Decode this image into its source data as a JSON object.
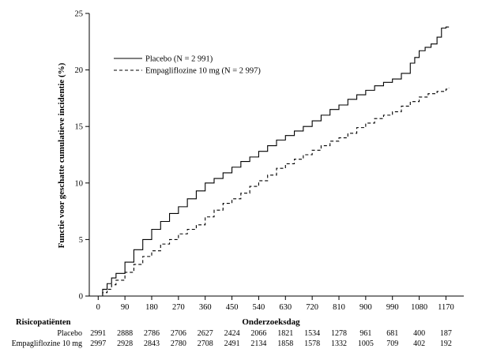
{
  "chart_data": {
    "type": "line",
    "xlabel": "Onderzoeksdag",
    "ylabel": "Functie voor geschatte cumulatieve incidentie (%)",
    "xlim": [
      -30,
      1230
    ],
    "ylim": [
      0,
      25
    ],
    "x_ticks": [
      0,
      90,
      180,
      270,
      360,
      450,
      540,
      630,
      720,
      810,
      900,
      990,
      1080,
      1170
    ],
    "y_ticks": [
      0,
      5,
      10,
      15,
      20,
      25
    ],
    "legend_position": "top-left",
    "series": [
      {
        "name": "Placebo (N = 2 991)",
        "line_style": "solid",
        "x": [
          0,
          15,
          30,
          45,
          60,
          90,
          120,
          150,
          180,
          210,
          240,
          270,
          300,
          330,
          360,
          390,
          420,
          450,
          480,
          510,
          540,
          570,
          600,
          630,
          660,
          690,
          720,
          750,
          780,
          810,
          840,
          870,
          900,
          930,
          960,
          990,
          1020,
          1050,
          1065,
          1080,
          1100,
          1120,
          1140,
          1155,
          1170,
          1180
        ],
        "y": [
          0,
          0.6,
          1.1,
          1.6,
          2.0,
          3.0,
          4.1,
          5.0,
          5.9,
          6.6,
          7.3,
          7.9,
          8.6,
          9.3,
          10.0,
          10.4,
          10.9,
          11.4,
          11.9,
          12.3,
          12.8,
          13.3,
          13.8,
          14.2,
          14.6,
          15.0,
          15.5,
          16.0,
          16.5,
          16.9,
          17.4,
          17.8,
          18.2,
          18.6,
          18.9,
          19.2,
          19.7,
          20.6,
          21.1,
          21.7,
          22.0,
          22.3,
          22.9,
          23.7,
          23.8,
          23.8
        ]
      },
      {
        "name": "Empagliflozine 10 mg (N = 2 997)",
        "line_style": "dashed",
        "x": [
          0,
          15,
          30,
          45,
          60,
          90,
          120,
          150,
          180,
          210,
          240,
          270,
          300,
          330,
          360,
          390,
          420,
          450,
          480,
          510,
          540,
          570,
          600,
          630,
          660,
          690,
          720,
          750,
          780,
          810,
          840,
          870,
          900,
          930,
          960,
          990,
          1020,
          1050,
          1080,
          1110,
          1140,
          1170,
          1180
        ],
        "y": [
          0,
          0.3,
          0.6,
          1.0,
          1.4,
          2.1,
          2.8,
          3.5,
          4.0,
          4.6,
          5.0,
          5.5,
          5.9,
          6.3,
          7.0,
          7.6,
          8.2,
          8.6,
          9.1,
          9.7,
          10.2,
          10.7,
          11.3,
          11.7,
          12.1,
          12.5,
          12.9,
          13.3,
          13.7,
          14.0,
          14.4,
          14.9,
          15.3,
          15.7,
          16.0,
          16.3,
          16.8,
          17.2,
          17.6,
          17.9,
          18.1,
          18.3,
          18.4
        ]
      }
    ],
    "risk_table": {
      "title": "Risicopatiënten",
      "rows": [
        {
          "label": "Placebo",
          "values": [
            "2991",
            "2888",
            "2786",
            "2706",
            "2627",
            "2424",
            "2066",
            "1821",
            "1534",
            "1278",
            "961",
            "681",
            "400",
            "187"
          ]
        },
        {
          "label": "Empagliflozine 10 mg",
          "values": [
            "2997",
            "2928",
            "2843",
            "2780",
            "2708",
            "2491",
            "2134",
            "1858",
            "1578",
            "1332",
            "1005",
            "709",
            "402",
            "192"
          ]
        }
      ]
    }
  }
}
